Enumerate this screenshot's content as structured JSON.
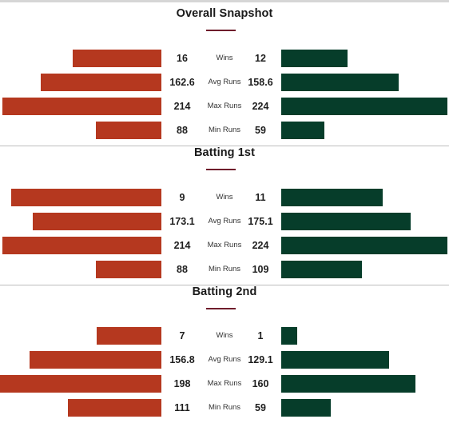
{
  "colors": {
    "team_a": "#b5381f",
    "team_b": "#063d2a",
    "accent": "#6f1d2b"
  },
  "sections": [
    {
      "title": "Overall Snapshot",
      "rows": [
        {
          "metric": "Wins",
          "left": "16",
          "right": "12"
        },
        {
          "metric": "Avg Runs",
          "left": "162.6",
          "right": "158.6"
        },
        {
          "metric": "Max Runs",
          "left": "214",
          "right": "224"
        },
        {
          "metric": "Min Runs",
          "left": "88",
          "right": "59"
        }
      ]
    },
    {
      "title": "Batting 1st",
      "rows": [
        {
          "metric": "Wins",
          "left": "9",
          "right": "11"
        },
        {
          "metric": "Avg Runs",
          "left": "173.1",
          "right": "175.1"
        },
        {
          "metric": "Max Runs",
          "left": "214",
          "right": "224"
        },
        {
          "metric": "Min Runs",
          "left": "88",
          "right": "109"
        }
      ]
    },
    {
      "title": "Batting 2nd",
      "rows": [
        {
          "metric": "Wins",
          "left": "7",
          "right": "1"
        },
        {
          "metric": "Avg Runs",
          "left": "156.8",
          "right": "129.1"
        },
        {
          "metric": "Max Runs",
          "left": "198",
          "right": "160"
        },
        {
          "metric": "Min Runs",
          "left": "111",
          "right": "59"
        }
      ]
    }
  ]
}
